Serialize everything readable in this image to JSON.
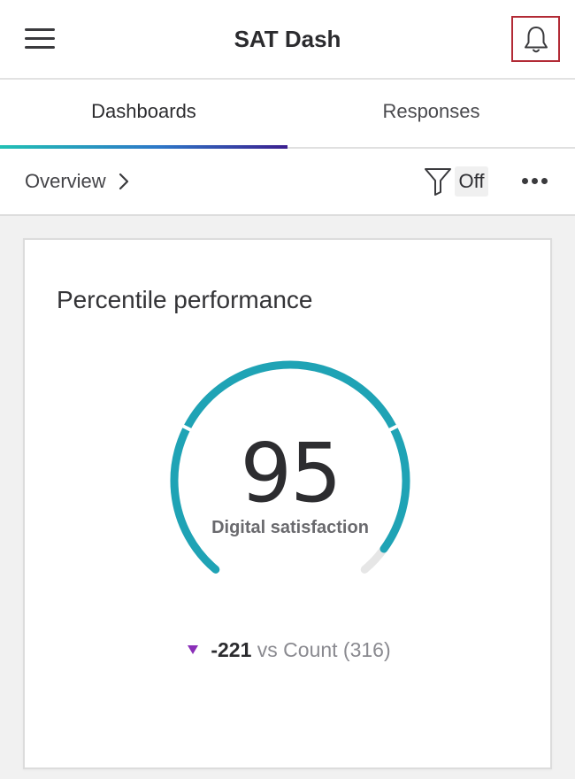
{
  "header": {
    "title": "SAT Dash",
    "menu_icon": "hamburger-menu-icon",
    "notification_icon": "bell-icon",
    "highlight_color": "#b22a35"
  },
  "tabs": [
    {
      "label": "Dashboards",
      "active": true
    },
    {
      "label": "Responses",
      "active": false
    }
  ],
  "tab_indicator_colors": [
    "#21c0b4",
    "#2d78c8",
    "#3b1f8f"
  ],
  "toolbar": {
    "breadcrumb": "Overview",
    "filter_state": "Off",
    "filter_icon": "filter-funnel-icon",
    "more_icon": "more-dots-icon"
  },
  "widget": {
    "title": "Percentile performance",
    "value": "95",
    "value_fraction": 0.95,
    "label": "Digital satisfaction",
    "comparison_delta": "-221",
    "comparison_text": "vs Count (316)",
    "trend_icon": "down-triangle-icon",
    "gauge_color": "#1fa3b5",
    "gauge_track_color": "#e6e6e6",
    "trend_color": "#8a2fb8"
  }
}
